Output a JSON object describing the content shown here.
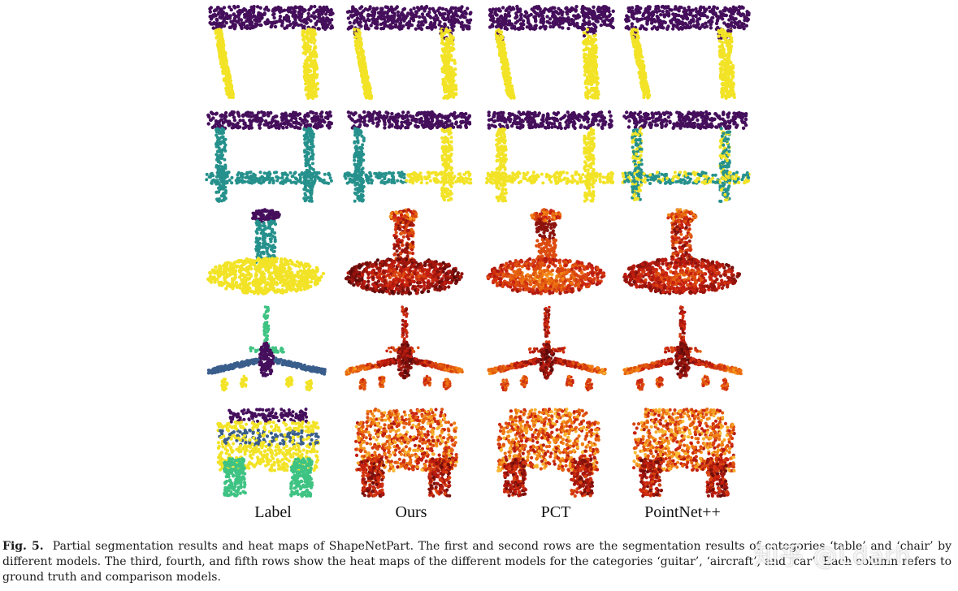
{
  "figure": {
    "columns": [
      "Label",
      "Ours",
      "PCT",
      "PointNet++"
    ],
    "rows": [
      "table",
      "chair",
      "guitar",
      "aircraft",
      "car"
    ],
    "palette": {
      "label_purple": "#450f5c",
      "label_yellow": "#f2e327",
      "label_teal": "#26918c",
      "label_green": "#3fc383",
      "label_blue": "#3a5e8c",
      "heat_dark": "#5a0a0a",
      "heat_red": "#c81e10",
      "heat_orange": "#f07a10",
      "heat_yellow": "#ffe34a"
    }
  },
  "caption": {
    "label": "Fig. 5.",
    "text": "Partial segmentation results and heat maps of ShapeNetPart. The first and second rows are the segmentation results of categories ‘table’ and ‘chair’ by different models. The third, fourth, and fifth rows show the heat maps of the different models for the categories ‘guitar’, ‘aircraft’, and ‘car’. Each column refers to ground truth and comparison models."
  },
  "watermark": "知乎 @Ldarh"
}
